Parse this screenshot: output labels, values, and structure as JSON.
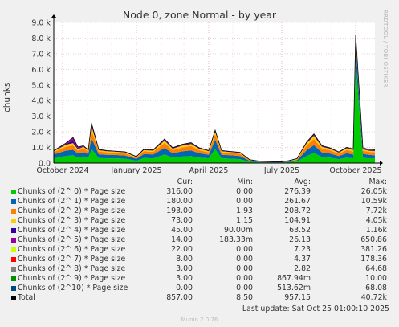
{
  "title": "Node 0, zone Normal - by year",
  "vertical_label": "chunks",
  "side_label": "RRDTOOL / TOBI OETIKER",
  "legend_headers": {
    "cur": "Cur:",
    "min": "Min:",
    "avg": "Avg:",
    "max": "Max:"
  },
  "legend": [
    {
      "name": "Chunks of (2^ 0) * Page size",
      "color": "#00cc00",
      "cur": "316.00",
      "min": "0.00",
      "avg": "276.39",
      "max": "26.05k"
    },
    {
      "name": "Chunks of (2^ 1) * Page size",
      "color": "#0066b3",
      "cur": "180.00",
      "min": "0.00",
      "avg": "261.67",
      "max": "10.59k"
    },
    {
      "name": "Chunks of (2^ 2) * Page size",
      "color": "#ff8000",
      "cur": "193.00",
      "min": "1.93",
      "avg": "208.72",
      "max": "7.72k"
    },
    {
      "name": "Chunks of (2^ 3) * Page size",
      "color": "#ffcc00",
      "cur": "73.00",
      "min": "1.15",
      "avg": "104.91",
      "max": "4.05k"
    },
    {
      "name": "Chunks of (2^ 4) * Page size",
      "color": "#330099",
      "cur": "45.00",
      "min": "90.00m",
      "avg": "63.52",
      "max": "1.16k"
    },
    {
      "name": "Chunks of (2^ 5) * Page size",
      "color": "#990099",
      "cur": "14.00",
      "min": "183.33m",
      "avg": "26.13",
      "max": "650.86"
    },
    {
      "name": "Chunks of (2^ 6) * Page size",
      "color": "#ccff00",
      "cur": "22.00",
      "min": "0.00",
      "avg": "7.23",
      "max": "381.26"
    },
    {
      "name": "Chunks of (2^ 7) * Page size",
      "color": "#ff0000",
      "cur": "8.00",
      "min": "0.00",
      "avg": "4.37",
      "max": "178.36"
    },
    {
      "name": "Chunks of (2^ 8) * Page size",
      "color": "#808080",
      "cur": "3.00",
      "min": "0.00",
      "avg": "2.82",
      "max": "64.68"
    },
    {
      "name": "Chunks of (2^ 9) * Page size",
      "color": "#008f00",
      "cur": "3.00",
      "min": "0.00",
      "avg": "867.94m",
      "max": "10.00"
    },
    {
      "name": "Chunks of (2^10) * Page size",
      "color": "#00487d",
      "cur": "0.00",
      "min": "0.00",
      "avg": "513.62m",
      "max": "68.08"
    },
    {
      "name": "Total",
      "color": "#000000",
      "cur": "857.00",
      "min": "8.50",
      "avg": "957.15",
      "max": "40.72k"
    }
  ],
  "last_update": "Last update: Sat Oct 25 01:00:10 2025",
  "footer": "Munin 2.0.76",
  "chart_data": {
    "type": "area",
    "title": "Node 0, zone Normal - by year",
    "ylabel": "chunks",
    "ylim": [
      0,
      9000
    ],
    "y_ticks": [
      {
        "value": 0,
        "label": "0.0"
      },
      {
        "value": 1000,
        "label": "1.0 k"
      },
      {
        "value": 2000,
        "label": "2.0 k"
      },
      {
        "value": 3000,
        "label": "3.0 k"
      },
      {
        "value": 4000,
        "label": "4.0 k"
      },
      {
        "value": 5000,
        "label": "5.0 k"
      },
      {
        "value": 6000,
        "label": "6.0 k"
      },
      {
        "value": 7000,
        "label": "7.0 k"
      },
      {
        "value": 8000,
        "label": "8.0 k"
      },
      {
        "value": 9000,
        "label": "9.0 k"
      }
    ],
    "xlim": [
      "2024-09-20",
      "2025-10-25"
    ],
    "x_ticks": [
      {
        "value": "2024-10-01",
        "label": "October 2024"
      },
      {
        "value": "2025-01-01",
        "label": "January 2025"
      },
      {
        "value": "2025-04-01",
        "label": "April 2025"
      },
      {
        "value": "2025-07-01",
        "label": "July 2025"
      },
      {
        "value": "2025-10-01",
        "label": "October 2025"
      }
    ],
    "grid": true,
    "series_order_bottom_to_top": [
      "Chunks of (2^ 0) * Page size",
      "Chunks of (2^ 1) * Page size",
      "Chunks of (2^ 2) * Page size",
      "Chunks of (2^ 3) * Page size",
      "Chunks of (2^ 4) * Page size",
      "Chunks of (2^ 5) * Page size",
      "Chunks of (2^ 6) * Page size",
      "Chunks of (2^ 7) * Page size"
    ],
    "x": [
      "2024-09-20",
      "2024-10-05",
      "2024-10-14",
      "2024-10-20",
      "2024-10-27",
      "2024-11-02",
      "2024-11-06",
      "2024-11-15",
      "2024-11-25",
      "2024-12-05",
      "2024-12-18",
      "2025-01-01",
      "2025-01-10",
      "2025-01-22",
      "2025-02-05",
      "2025-02-15",
      "2025-02-27",
      "2025-03-10",
      "2025-03-20",
      "2025-04-01",
      "2025-04-09",
      "2025-04-17",
      "2025-04-28",
      "2025-05-10",
      "2025-05-22",
      "2025-06-05",
      "2025-06-20",
      "2025-07-01",
      "2025-07-10",
      "2025-07-20",
      "2025-08-01",
      "2025-08-10",
      "2025-08-20",
      "2025-08-30",
      "2025-09-10",
      "2025-09-20",
      "2025-09-28",
      "2025-10-01",
      "2025-10-10",
      "2025-10-17",
      "2025-10-25"
    ],
    "series": [
      {
        "name": "Chunks of (2^ 0) * Page size",
        "values": [
          300,
          450,
          500,
          350,
          400,
          320,
          900,
          320,
          300,
          300,
          280,
          150,
          320,
          300,
          550,
          350,
          420,
          450,
          350,
          300,
          900,
          300,
          280,
          250,
          80,
          40,
          30,
          30,
          60,
          100,
          450,
          650,
          380,
          350,
          250,
          350,
          300,
          6500,
          350,
          300,
          316
        ]
      },
      {
        "name": "Chunks of (2^ 1) * Page size",
        "values": [
          250,
          350,
          350,
          260,
          300,
          250,
          700,
          240,
          230,
          220,
          200,
          120,
          250,
          250,
          420,
          280,
          330,
          360,
          280,
          230,
          600,
          230,
          220,
          200,
          60,
          30,
          20,
          20,
          40,
          80,
          380,
          500,
          300,
          260,
          200,
          280,
          240,
          1200,
          250,
          230,
          180
        ]
      },
      {
        "name": "Chunks of (2^ 2) * Page size",
        "values": [
          150,
          250,
          280,
          190,
          230,
          160,
          500,
          180,
          160,
          150,
          140,
          80,
          180,
          170,
          320,
          200,
          250,
          280,
          200,
          160,
          350,
          160,
          150,
          140,
          40,
          20,
          15,
          15,
          30,
          60,
          300,
          400,
          240,
          210,
          150,
          220,
          190,
          350,
          200,
          190,
          193
        ]
      },
      {
        "name": "Chunks of (2^ 3) * Page size",
        "values": [
          60,
          120,
          150,
          90,
          110,
          70,
          250,
          80,
          70,
          60,
          60,
          40,
          80,
          80,
          150,
          90,
          120,
          130,
          90,
          70,
          150,
          70,
          60,
          60,
          20,
          10,
          8,
          8,
          15,
          30,
          140,
          200,
          120,
          100,
          70,
          100,
          90,
          120,
          90,
          80,
          73
        ]
      },
      {
        "name": "Chunks of (2^ 4) * Page size",
        "values": [
          20,
          60,
          150,
          70,
          40,
          25,
          120,
          30,
          25,
          20,
          20,
          15,
          30,
          30,
          60,
          35,
          45,
          50,
          35,
          25,
          60,
          25,
          20,
          20,
          8,
          5,
          4,
          4,
          6,
          10,
          50,
          70,
          40,
          35,
          25,
          40,
          35,
          40,
          40,
          40,
          45
        ]
      },
      {
        "name": "Chunks of (2^ 5) * Page size",
        "values": [
          10,
          30,
          180,
          60,
          20,
          12,
          60,
          15,
          12,
          10,
          10,
          8,
          15,
          15,
          30,
          18,
          22,
          25,
          18,
          12,
          30,
          12,
          10,
          10,
          4,
          2,
          2,
          2,
          3,
          5,
          20,
          30,
          20,
          15,
          12,
          15,
          15,
          15,
          15,
          14,
          14
        ]
      },
      {
        "name": "Chunks of (2^ 6) * Page size",
        "values": [
          5,
          10,
          20,
          10,
          8,
          5,
          20,
          6,
          5,
          4,
          4,
          3,
          6,
          6,
          10,
          7,
          8,
          9,
          7,
          5,
          10,
          5,
          4,
          4,
          2,
          1,
          1,
          1,
          2,
          3,
          8,
          12,
          8,
          6,
          5,
          6,
          20,
          8,
          20,
          22,
          22
        ]
      },
      {
        "name": "Chunks of (2^ 7) * Page size",
        "values": [
          2,
          5,
          8,
          5,
          4,
          3,
          10,
          3,
          3,
          2,
          2,
          2,
          3,
          3,
          5,
          3,
          4,
          4,
          3,
          3,
          5,
          3,
          2,
          2,
          1,
          1,
          0,
          0,
          1,
          2,
          4,
          6,
          4,
          3,
          3,
          3,
          8,
          4,
          8,
          8,
          8
        ]
      }
    ]
  }
}
